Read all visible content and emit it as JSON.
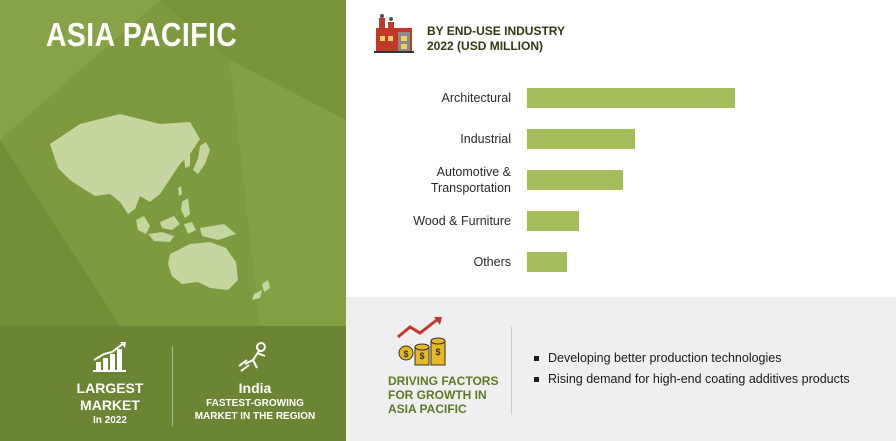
{
  "left": {
    "region_title": "ASIA PACIFIC",
    "stats": [
      {
        "big": "LARGEST",
        "big2": "MARKET",
        "small": "In 2022",
        "icon": "rising-bar-chart-icon"
      },
      {
        "big": "India",
        "small": "FASTEST-GROWING",
        "small2": "MARKET IN THE REGION",
        "icon": "rocket-man-icon"
      }
    ],
    "map_icon": "asia-pacific-map"
  },
  "header": {
    "line1": "BY END-USE INDUSTRY",
    "line2": "2022 (USD MILLION)",
    "icon": "factory-icon"
  },
  "chart_data": {
    "type": "bar",
    "orientation": "horizontal",
    "categories": [
      "Architectural",
      "Industrial",
      "Automotive & Transportation",
      "Wood & Furniture",
      "Others"
    ],
    "category_lines": [
      [
        "Architectural"
      ],
      [
        "Industrial"
      ],
      [
        "Automotive &",
        "Transportation"
      ],
      [
        "Wood & Furniture"
      ],
      [
        "Others"
      ]
    ],
    "values": [
      260,
      135,
      120,
      65,
      50
    ],
    "xlim": [
      0,
      300
    ],
    "title": "",
    "xlabel": "",
    "ylabel": "",
    "grid": false,
    "bar_color": "#a4bd5a"
  },
  "drivers": {
    "title_lines": [
      "DRIVING FACTORS",
      "FOR GROWTH IN",
      "ASIA PACIFIC"
    ],
    "icon": "coins-growth-icon",
    "items": [
      "Developing better production technologies",
      "Rising demand for high-end coating additives products"
    ]
  },
  "colors": {
    "panel_green": "#7d9a3f",
    "strip_green": "#6b8534",
    "bar_green": "#a4bd5a",
    "map_fill": "#c5d5a0"
  }
}
